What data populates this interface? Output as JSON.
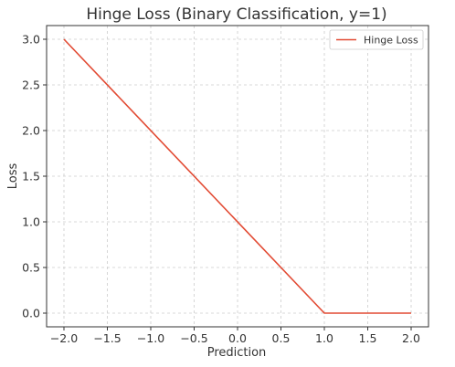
{
  "chart_data": {
    "type": "line",
    "title": "Hinge Loss (Binary Classification, y=1)",
    "xlabel": "Prediction",
    "ylabel": "Loss",
    "xlim": [
      -2.2,
      2.2
    ],
    "ylim": [
      -0.15,
      3.15
    ],
    "xticks": [
      -2.0,
      -1.5,
      -1.0,
      -0.5,
      0.0,
      0.5,
      1.0,
      1.5,
      2.0
    ],
    "xtick_labels": [
      "−2.0",
      "−1.5",
      "−1.0",
      "−0.5",
      "0.0",
      "0.5",
      "1.0",
      "1.5",
      "2.0"
    ],
    "yticks": [
      0.0,
      0.5,
      1.0,
      1.5,
      2.0,
      2.5,
      3.0
    ],
    "ytick_labels": [
      "0.0",
      "0.5",
      "1.0",
      "1.5",
      "2.0",
      "2.5",
      "3.0"
    ],
    "grid": true,
    "legend_position": "top-right",
    "series": [
      {
        "name": "Hinge Loss",
        "color": "#e24a33",
        "x": [
          -2.0,
          1.0,
          2.0
        ],
        "y": [
          3.0,
          0.0,
          0.0
        ]
      }
    ]
  }
}
